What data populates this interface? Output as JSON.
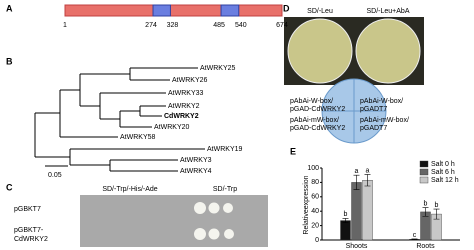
{
  "panels": {
    "A": {
      "label": "A",
      "start": 1,
      "end": 674,
      "domains": [
        [
          274,
          328
        ],
        [
          485,
          540
        ]
      ]
    },
    "B": {
      "label": "B",
      "leaves": [
        {
          "name": "AtWRKY25",
          "color": "#000000"
        },
        {
          "name": "AtWRKY26",
          "color": "#000000"
        },
        {
          "name": "AtWRKY33",
          "color": "#000000"
        },
        {
          "name": "AtWRKY2",
          "color": "#000000"
        },
        {
          "name": "CdWRKY2",
          "color": "#e02020"
        },
        {
          "name": "AtWRKY20",
          "color": "#000000"
        },
        {
          "name": "AtWRKY58",
          "color": "#000000"
        },
        {
          "name": "AtWRKY19",
          "color": "#000000"
        },
        {
          "name": "AtWRKY3",
          "color": "#000000"
        },
        {
          "name": "AtWRKY4",
          "color": "#000000"
        }
      ],
      "scale": "0.05"
    },
    "C": {
      "label": "C",
      "columns": [
        "SD/-Trp/-His/-Ade",
        "SD/-Trp"
      ],
      "rows": [
        [
          "pGBKT7"
        ],
        [
          "pGBKT7-",
          "CdWRKY2"
        ]
      ]
    },
    "D": {
      "label": "D",
      "columns": [
        "SD/-Leu",
        "SD/-Leu+AbA"
      ],
      "quadrants": [
        [
          "pAbAi-W-box/",
          "pGAD-CdWRKY2"
        ],
        [
          "pAbAi-W-box/",
          "pGADT7"
        ],
        [
          "pAbAi-mW-box/",
          "pGAD-CdWRKY2"
        ],
        [
          "pAbAi-mW-box/",
          "pGADT7"
        ]
      ]
    }
  },
  "chart_data": {
    "type": "bar",
    "panel_label": "E",
    "y_label": "Relativeexpression",
    "categories": [
      "Shoots",
      "Roots"
    ],
    "series": [
      {
        "name": "Salt 0 h",
        "color": "#111111",
        "values": [
          27,
          1
        ],
        "errors": [
          3,
          0.5
        ],
        "letters": [
          "b",
          "c"
        ]
      },
      {
        "name": "Salt 6 h",
        "color": "#666666",
        "values": [
          80,
          39
        ],
        "errors": [
          10,
          6
        ],
        "letters": [
          "a",
          "b"
        ]
      },
      {
        "name": "Salt 12 h",
        "color": "#c8c8c8",
        "values": [
          83,
          36
        ],
        "errors": [
          8,
          7
        ],
        "letters": [
          "a",
          "b"
        ]
      }
    ],
    "ylim": [
      0,
      100
    ],
    "yticks": [
      0,
      20,
      40,
      60,
      80,
      100
    ]
  }
}
